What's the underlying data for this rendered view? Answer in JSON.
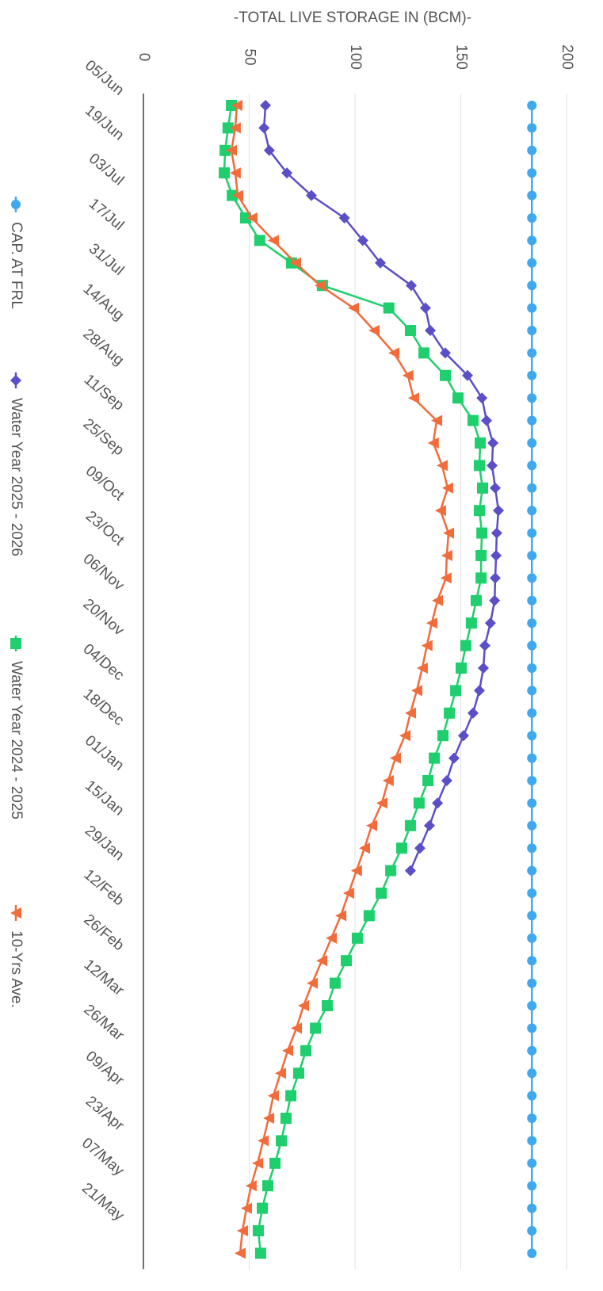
{
  "chart_data": {
    "type": "line",
    "title": "-TOTAL LIVE STORAGE IN (BCM)-",
    "categories": [
      "05/Jun",
      null,
      "19/Jun",
      null,
      "03/Jul",
      null,
      "17/Jul",
      null,
      "31/Jul",
      null,
      "14/Aug",
      null,
      "28/Aug",
      null,
      "11/Sep",
      null,
      "25/Sep",
      null,
      "09/Oct",
      null,
      "23/Oct",
      null,
      "06/Nov",
      null,
      "20/Nov",
      null,
      "04/Dec",
      null,
      "18/Dec",
      null,
      "01/Jan",
      null,
      "15/Jan",
      null,
      "29/Jan",
      null,
      "12/Feb",
      null,
      "26/Feb",
      null,
      "12/Mar",
      null,
      "26/Mar",
      null,
      "09/Apr",
      null,
      "23/Apr",
      null,
      "07/May",
      null,
      "21/May",
      null
    ],
    "ylim": [
      0,
      200
    ],
    "yticks": [
      0,
      50,
      100,
      150,
      200
    ],
    "grid": true,
    "series": [
      {
        "name": "CAP. AT FRL",
        "color": "#3ea8f0",
        "marker": "circle",
        "values": [
          183.6,
          183.6,
          183.6,
          183.6,
          183.6,
          183.6,
          183.6,
          183.6,
          183.6,
          183.6,
          183.6,
          183.6,
          183.6,
          183.6,
          183.6,
          183.6,
          183.6,
          183.6,
          183.6,
          183.6,
          183.6,
          183.6,
          183.6,
          183.6,
          183.6,
          183.6,
          183.6,
          183.6,
          183.6,
          183.6,
          183.6,
          183.6,
          183.6,
          183.6,
          183.6,
          183.6,
          183.6,
          183.6,
          183.6,
          183.6,
          183.6,
          183.6,
          183.6,
          183.6,
          183.6,
          183.6,
          183.6,
          183.6,
          183.6,
          183.6,
          183.6,
          183.6
        ]
      },
      {
        "name": "Water Year 2025 - 2026",
        "color": "#5b4fc8",
        "marker": "diamond",
        "values": [
          57.7,
          57,
          59.5,
          67.8,
          79.4,
          95,
          103.7,
          112,
          126.6,
          133.3,
          135.6,
          142.7,
          153.2,
          160,
          162.2,
          165.2,
          164.8,
          166.3,
          167.8,
          167,
          166.7,
          166.3,
          166,
          164,
          161.4,
          160.7,
          158.8,
          155.8,
          151.3,
          146.8,
          143.4,
          139,
          135.2,
          130.7,
          126.2,
          null,
          null,
          null,
          null,
          null,
          null,
          null,
          null,
          null,
          null,
          null,
          null,
          null,
          null,
          null,
          null,
          null
        ]
      },
      {
        "name": "Water Year 2024 - 2025",
        "color": "#1fcf6e",
        "marker": "square",
        "values": [
          41.6,
          40,
          38.6,
          38.2,
          42,
          48.3,
          55,
          70,
          84.6,
          116,
          126.2,
          132.6,
          142.7,
          148.7,
          155.8,
          159.2,
          158.8,
          160.3,
          158.8,
          160,
          159.6,
          159.6,
          157.3,
          155,
          152.4,
          150.2,
          147.6,
          144.6,
          141.6,
          137.5,
          134.5,
          130.3,
          126.2,
          122.1,
          116.9,
          112.4,
          106.7,
          101.1,
          95.9,
          90.6,
          86.9,
          81.3,
          76.8,
          73.4,
          69.7,
          67.4,
          65.2,
          62.2,
          58.8,
          56.2,
          54.3,
          55.4
        ]
      },
      {
        "name": "10-Yrs Ave.",
        "color": "#f26b3a",
        "marker": "triangle",
        "values": [
          44.2,
          43.4,
          41.6,
          43.4,
          44.6,
          51.3,
          61.4,
          71.9,
          83.5,
          99.3,
          109,
          118.4,
          125,
          127.7,
          138.6,
          137,
          141.2,
          143.8,
          140.4,
          144.2,
          143.4,
          143,
          139,
          136.3,
          134,
          131.8,
          129.2,
          126.2,
          123.6,
          119.1,
          115.7,
          112.7,
          107.9,
          104.5,
          100.7,
          97,
          93.3,
          88.8,
          84.3,
          79.8,
          75.7,
          72.3,
          68.2,
          64.8,
          61.4,
          59.2,
          56.6,
          54,
          50.9,
          48.7,
          46.8,
          45.7
        ]
      }
    ]
  }
}
